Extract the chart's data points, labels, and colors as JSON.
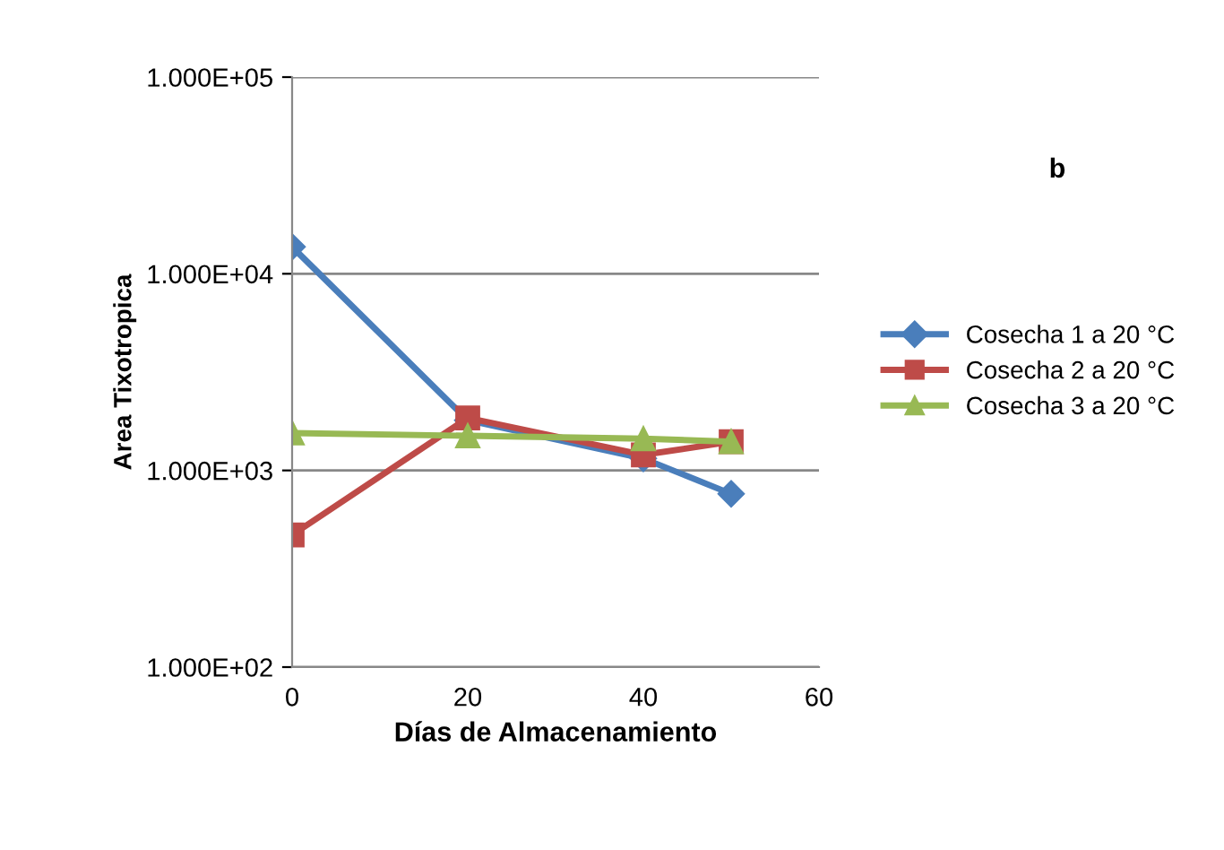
{
  "chart_data": {
    "type": "line",
    "xlabel": "Días de Almacenamiento",
    "ylabel": "Area Tixotropica",
    "annotations": [
      "b"
    ],
    "log": "y",
    "grid": "y",
    "legend": "right",
    "line_style": "solid",
    "xlim": [
      0,
      60
    ],
    "xticks": [
      0,
      20,
      40,
      60
    ],
    "ylim": [
      100,
      100000
    ],
    "yticks": [
      {
        "value": 100,
        "label": "1.000E+02"
      },
      {
        "value": 1000,
        "label": "1.000E+03"
      },
      {
        "value": 10000,
        "label": "1.000E+04"
      },
      {
        "value": 100000,
        "label": "1.000E+05"
      }
    ],
    "x": [
      0,
      20,
      40,
      50
    ],
    "series": [
      {
        "name": "Cosecha 1 a 20 °C",
        "color": "#4a7ebb",
        "marker": "diamond",
        "values": [
          13700,
          1800,
          1150,
          760
        ]
      },
      {
        "name": "Cosecha 2 a 20 °C",
        "color": "#be4b48",
        "marker": "square",
        "values": [
          470,
          1850,
          1200,
          1400
        ]
      },
      {
        "name": "Cosecha 3 a 20 °C",
        "color": "#98b954",
        "marker": "triangle",
        "values": [
          1550,
          1500,
          1450,
          1400
        ]
      }
    ]
  }
}
